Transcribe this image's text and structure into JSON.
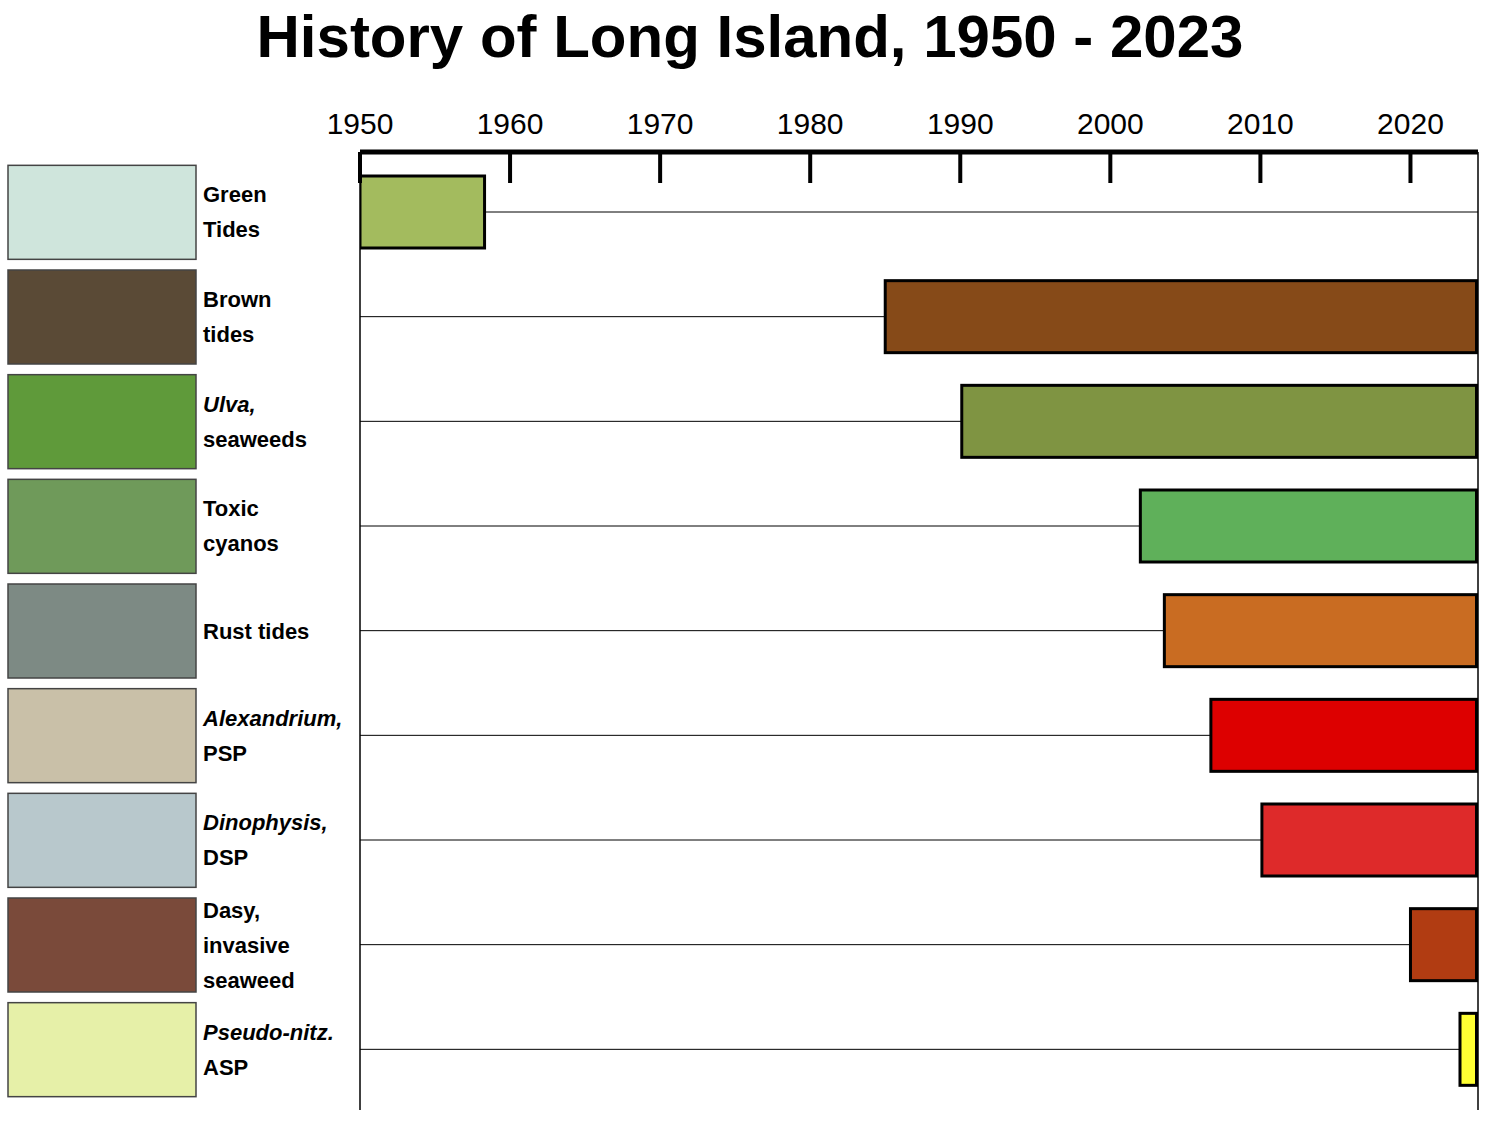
{
  "chart_data": {
    "type": "bar",
    "title": "History of Long Island, 1950 - 2023",
    "orientation": "horizontal",
    "categories": [
      "Green\nTides",
      "Brown\ntides",
      "Ulva,\nseaweeds",
      "Toxic\ncyanos",
      "Rust  tides",
      "Alexandrium,\nPSP",
      "Dinophysis,\nDSP",
      "Dasy,\ninvasive\nseaweed",
      "Pseudo-nitz.\nASP"
    ],
    "values": [
      [
        1950,
        1958.3
      ],
      [
        1985,
        2024.4
      ],
      [
        1990.1,
        2024.4
      ],
      [
        2002,
        2024.4
      ],
      [
        2003.6,
        2024.4
      ],
      [
        2006.7,
        2024.4
      ],
      [
        2010.1,
        2024.4
      ],
      [
        2020,
        2024.4
      ],
      [
        2023.3,
        2024.4
      ]
    ],
    "colors": [
      "#a3bb5e",
      "#864a18",
      "#7f9442",
      "#5fb05a",
      "#c96c22",
      "#dd0000",
      "#de2a2a",
      "#b13c12",
      "#ffff33"
    ],
    "xlim": [
      1950,
      2024.5
    ],
    "xticks": [
      1950,
      1960,
      1970,
      1980,
      1990,
      2000,
      2010,
      2020
    ],
    "grid": false
  }
}
